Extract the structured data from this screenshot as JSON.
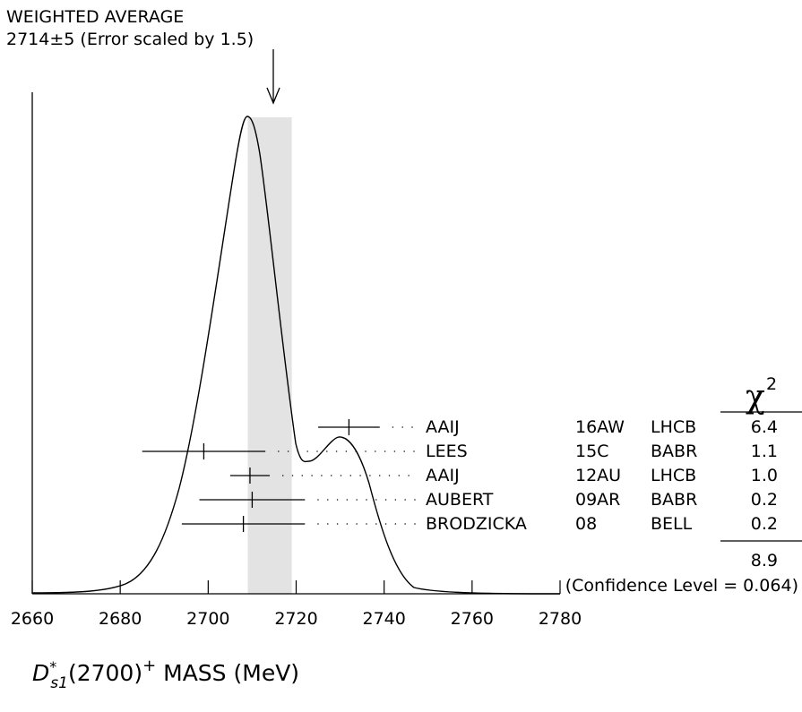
{
  "header": {
    "line1": "WEIGHTED AVERAGE",
    "line2": "2714±5 (Error scaled by 1.5)"
  },
  "chart_data": {
    "type": "ideogram",
    "xlim": [
      2660,
      2780
    ],
    "x_ticks": [
      2660,
      2680,
      2700,
      2720,
      2740,
      2760,
      2780
    ],
    "tick_labels": [
      "2660",
      "2680",
      "2700",
      "2720",
      "2740",
      "2760",
      "2780"
    ],
    "weighted_average": {
      "value": 2714,
      "error": 5,
      "band": [
        2709,
        2719
      ]
    },
    "measurements": [
      {
        "author": "AAIJ",
        "code": "16AW",
        "experiment": "LHCB",
        "value": 2732,
        "error": 7,
        "chi2": "6.4"
      },
      {
        "author": "LEES",
        "code": "15C",
        "experiment": "BABR",
        "value": 2699,
        "error": 14,
        "chi2": "1.1"
      },
      {
        "author": "AAIJ",
        "code": "12AU",
        "experiment": "LHCB",
        "value": 2709.5,
        "error": 4.5,
        "chi2": "1.0"
      },
      {
        "author": "AUBERT",
        "code": "09AR",
        "experiment": "BABR",
        "value": 2710,
        "error": 12,
        "chi2": "0.2"
      },
      {
        "author": "BRODZICKA",
        "code": "08",
        "experiment": "BELL",
        "value": 2708,
        "error": 14,
        "chi2": "0.2"
      }
    ],
    "chi2_header": "χ",
    "chi2_exponent": "2",
    "chi2_total": "8.9",
    "confidence_level": "(Confidence Level = 0.064)",
    "xlabel": {
      "symbol": "D",
      "superscript": "*",
      "subscript": "s1",
      "rest": "(2700)",
      "charge": "+",
      "suffix": " MASS (MeV)"
    },
    "colors": {
      "band": "#e3e3e3",
      "ink": "#000000"
    }
  }
}
